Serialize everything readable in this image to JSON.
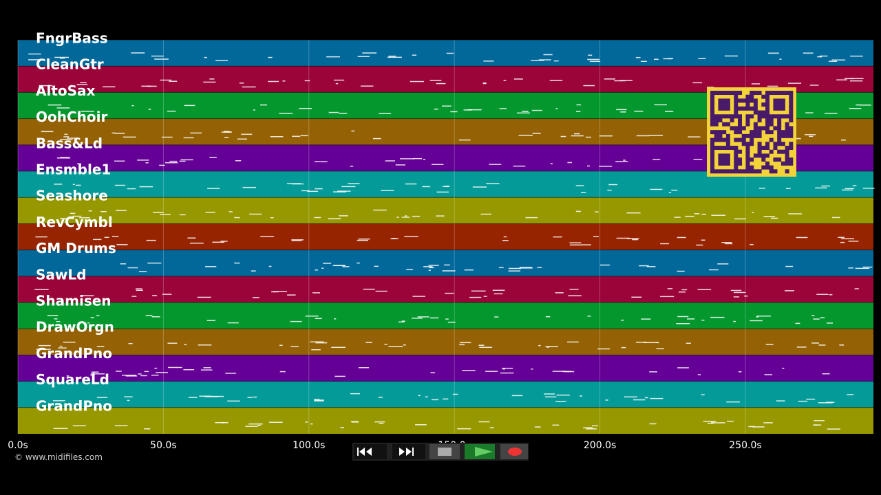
{
  "tracks": [
    {
      "name": "FngrBass",
      "color": "#02689a"
    },
    {
      "name": "CleanGtr",
      "color": "#9a0438"
    },
    {
      "name": "AltoSax",
      "color": "#03972e"
    },
    {
      "name": "OohChoir",
      "color": "#946204"
    },
    {
      "name": "Bass&Ld",
      "color": "#650096"
    },
    {
      "name": "Ensmble1",
      "color": "#039a98"
    },
    {
      "name": "Seashore",
      "color": "#979800"
    },
    {
      "name": "RevCymbl",
      "color": "#972401"
    },
    {
      "name": "GM Drums",
      "color": "#02689a"
    },
    {
      "name": "SawLd",
      "color": "#9a0438"
    },
    {
      "name": "Shamisen",
      "color": "#03972e"
    },
    {
      "name": "DrawOrgn",
      "color": "#946204"
    },
    {
      "name": "GrandPno",
      "color": "#650096"
    },
    {
      "name": "SquareLd",
      "color": "#039a98"
    },
    {
      "name": "GrandPno",
      "color": "#979800"
    }
  ],
  "time_axis": {
    "xlim": [
      0,
      294
    ],
    "xticks": [
      {
        "value": 0,
        "label": "0.0s"
      },
      {
        "value": 50,
        "label": "50.0s"
      },
      {
        "value": 100,
        "label": "100.0s"
      },
      {
        "value": 150,
        "label": "150.0s"
      },
      {
        "value": 200,
        "label": "200.0s"
      },
      {
        "value": 250,
        "label": "250.0s"
      }
    ]
  },
  "copyright": "© www.midifiles.com"
}
